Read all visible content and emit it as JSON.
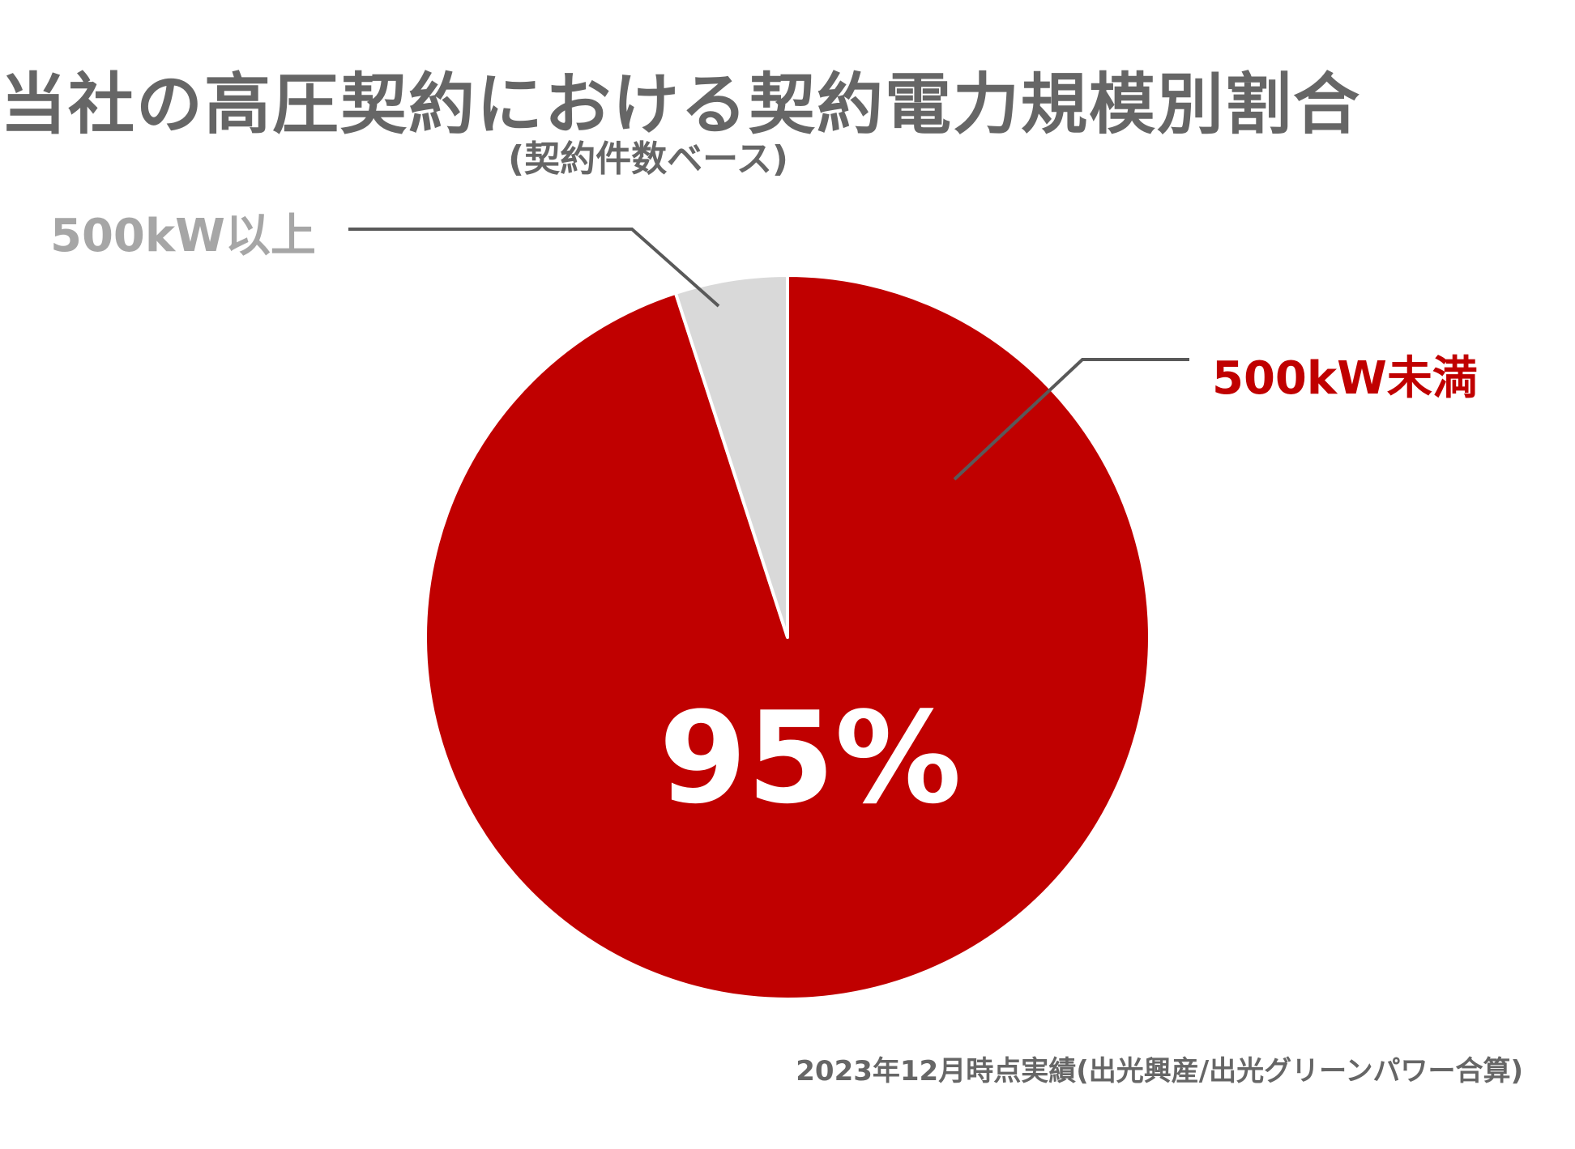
{
  "chart_data": {
    "type": "pie",
    "title": "当社の高圧契約における契約電力規模別割合",
    "subtitle": "(契約件数ベース)",
    "slices": [
      {
        "label": "500kW未満",
        "value": 95,
        "color": "#C00000"
      },
      {
        "label": "500kW以上",
        "value": 5,
        "color": "#D9D9D9"
      }
    ],
    "data_label": "95%",
    "label_colors": {
      "small": "#A6A6A6",
      "large": "#C00000"
    },
    "leader_line_color": "#595959",
    "start_angle_deg": 0,
    "direction": "clockwise"
  },
  "footnote": "2023年12月時点実績(出光興産/出光グリーンパワー合算)"
}
